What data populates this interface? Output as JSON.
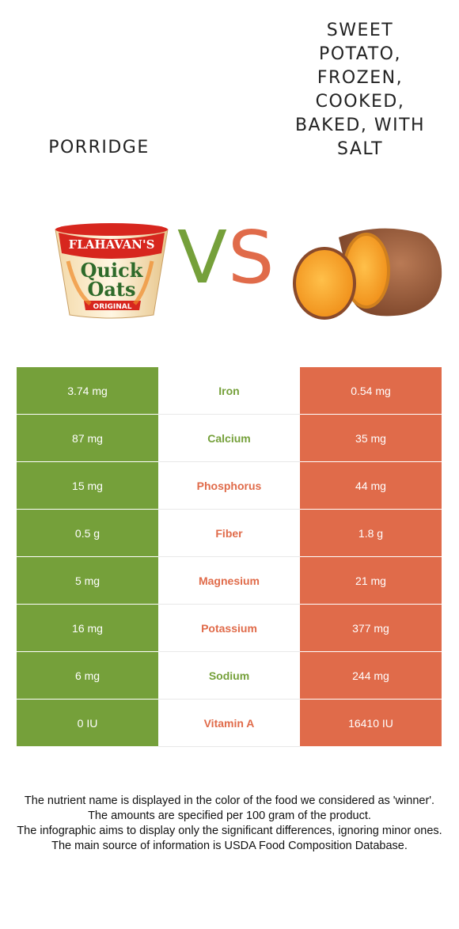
{
  "foods": {
    "left": {
      "name": "PORRIDGE",
      "color": "#75a03a",
      "image": "porridge-cup-icon"
    },
    "right": {
      "name": "SWEET POTATO, FROZEN, COOKED, BAKED, WITH SALT",
      "color": "#e06b4a",
      "image": "sweet-potato-icon"
    }
  },
  "vs": {
    "v": "V",
    "s": "S"
  },
  "nutrients": [
    {
      "name": "Iron",
      "left": "3.74 mg",
      "right": "0.54 mg",
      "winner": "left"
    },
    {
      "name": "Calcium",
      "left": "87 mg",
      "right": "35 mg",
      "winner": "left"
    },
    {
      "name": "Phosphorus",
      "left": "15 mg",
      "right": "44 mg",
      "winner": "right"
    },
    {
      "name": "Fiber",
      "left": "0.5 g",
      "right": "1.8 g",
      "winner": "right"
    },
    {
      "name": "Magnesium",
      "left": "5 mg",
      "right": "21 mg",
      "winner": "right"
    },
    {
      "name": "Potassium",
      "left": "16 mg",
      "right": "377 mg",
      "winner": "right"
    },
    {
      "name": "Sodium",
      "left": "6 mg",
      "right": "244 mg",
      "winner": "left"
    },
    {
      "name": "Vitamin A",
      "left": "0 IU",
      "right": "16410 IU",
      "winner": "right"
    }
  ],
  "footnotes": [
    "The nutrient name is displayed in the color of the food we considered as 'winner'.",
    "The amounts are specified per 100 gram of the product.",
    "The infographic aims to display only the significant differences, ignoring minor ones.",
    "The main source of information is USDA Food Composition Database."
  ],
  "logo_text": {
    "brand": "FLAHAVAN'S",
    "line1": "Quick",
    "line2": "Oats",
    "variant": "ORIGINAL"
  }
}
